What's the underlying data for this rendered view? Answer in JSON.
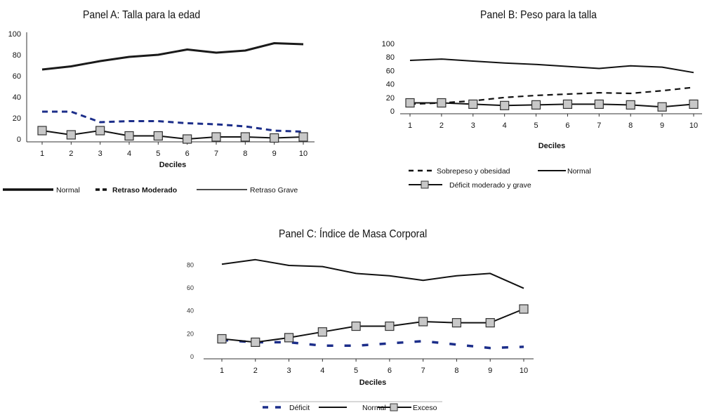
{
  "chart_data": [
    {
      "id": "A",
      "type": "line",
      "title": "Panel A: Talla para la edad",
      "xlabel": "Deciles",
      "ylabel": "",
      "categories": [
        "1",
        "2",
        "3",
        "4",
        "5",
        "6",
        "7",
        "8",
        "9",
        "10"
      ],
      "yticks": [
        "0",
        "20",
        "40",
        "60",
        "80",
        "100"
      ],
      "ylim": [
        0,
        100
      ],
      "grid": false,
      "legend_position": "bottom",
      "series": [
        {
          "name": "Normal",
          "style": "thick",
          "marker": "none",
          "values": [
            66,
            69,
            74,
            78,
            80,
            85,
            82,
            84,
            91,
            90
          ]
        },
        {
          "name": "Retraso Moderado",
          "style": "dashed",
          "marker": "none",
          "values": [
            26,
            26,
            16,
            17,
            17,
            15,
            14,
            12,
            8,
            7
          ]
        },
        {
          "name": "Retraso Grave",
          "style": "thin",
          "marker": "square",
          "values": [
            8,
            4,
            8,
            3,
            3,
            0,
            2,
            2,
            1,
            2
          ]
        }
      ]
    },
    {
      "id": "B",
      "type": "line",
      "title": "Panel B: Peso para la talla",
      "xlabel": "Deciles",
      "ylabel": "",
      "categories": [
        "1",
        "2",
        "3",
        "4",
        "5",
        "6",
        "7",
        "8",
        "9",
        "10"
      ],
      "yticks": [
        "0",
        "20",
        "40",
        "60",
        "80",
        "100"
      ],
      "ylim": [
        0,
        100
      ],
      "grid": false,
      "legend_position": "bottom",
      "series": [
        {
          "name": "Sobrepeso y obesidad",
          "style": "dashed",
          "marker": "none",
          "values": [
            10,
            12,
            15,
            20,
            23,
            25,
            27,
            26,
            30,
            35
          ]
        },
        {
          "name": "Normal",
          "style": "solid",
          "marker": "none",
          "values": [
            75,
            77,
            74,
            71,
            69,
            66,
            63,
            67,
            65,
            57
          ]
        },
        {
          "name": "Déficit moderado y grave",
          "style": "solid",
          "marker": "square",
          "values": [
            12,
            12,
            10,
            8,
            9,
            10,
            10,
            9,
            6,
            10
          ]
        }
      ]
    },
    {
      "id": "C",
      "type": "line",
      "title": "Panel C: Índice de Masa Corporal",
      "xlabel": "Deciles",
      "ylabel": "",
      "categories": [
        "1",
        "2",
        "3",
        "4",
        "5",
        "6",
        "7",
        "8",
        "9",
        "10"
      ],
      "yticks": [
        "0",
        "20",
        "40",
        "60",
        "80"
      ],
      "ylim": [
        0,
        90
      ],
      "grid": false,
      "legend_position": "bottom",
      "series": [
        {
          "name": "Déficit",
          "style": "dashed-blue",
          "marker": "none",
          "values": [
            14,
            12,
            12,
            9,
            9,
            11,
            13,
            10,
            7,
            8
          ]
        },
        {
          "name": "Normal",
          "style": "solid",
          "marker": "none",
          "values": [
            80,
            84,
            79,
            78,
            72,
            70,
            66,
            70,
            72,
            59
          ]
        },
        {
          "name": "Exceso",
          "style": "solid",
          "marker": "square",
          "values": [
            15,
            12,
            16,
            21,
            26,
            26,
            30,
            29,
            29,
            41
          ]
        }
      ]
    }
  ]
}
